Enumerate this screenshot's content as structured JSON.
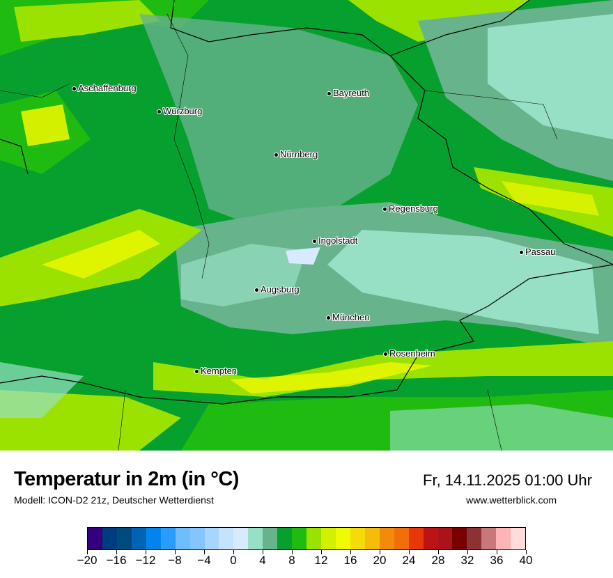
{
  "map": {
    "cities": [
      {
        "name": "Aschaffenburg"
      },
      {
        "name": "Würzburg"
      },
      {
        "name": "Bayreuth"
      },
      {
        "name": "Nürnberg"
      },
      {
        "name": "Regensburg"
      },
      {
        "name": "Ingolstadt"
      },
      {
        "name": "Passau"
      },
      {
        "name": "Augsburg"
      },
      {
        "name": "München"
      },
      {
        "name": "Rosenheim"
      },
      {
        "name": "Kempten"
      }
    ]
  },
  "footer": {
    "title": "Temperatur in 2m (in °C)",
    "subtitle": "Modell: ICON-D2 21z, Deutscher Wetterdienst",
    "datetime": "Fr, 14.11.2025 01:00 Uhr",
    "website": "www.wetterblick.com"
  },
  "colorbar": {
    "min": -20,
    "max": 40,
    "step": 2,
    "tick_labels": [
      "−20",
      "−16",
      "−12",
      "−8",
      "−4",
      "0",
      "4",
      "8",
      "12",
      "16",
      "20",
      "24",
      "28",
      "32",
      "36",
      "40"
    ],
    "colors": [
      "#330080",
      "#003c80",
      "#004a80",
      "#0064b4",
      "#0085f0",
      "#2a9bff",
      "#6ebeff",
      "#85c5ff",
      "#a8d5ff",
      "#c5e3ff",
      "#d8eaff",
      "#98e0c5",
      "#66b38c",
      "#05a02e",
      "#20bb10",
      "#9ce200",
      "#d2f000",
      "#f0fa00",
      "#f5dc08",
      "#f5bc0a",
      "#f28b0a",
      "#f26e0a",
      "#e8380a",
      "#bc1414",
      "#aa1419",
      "#780000",
      "#8c3232",
      "#c87878",
      "#ffb4b4",
      "#ffdcdc"
    ]
  }
}
